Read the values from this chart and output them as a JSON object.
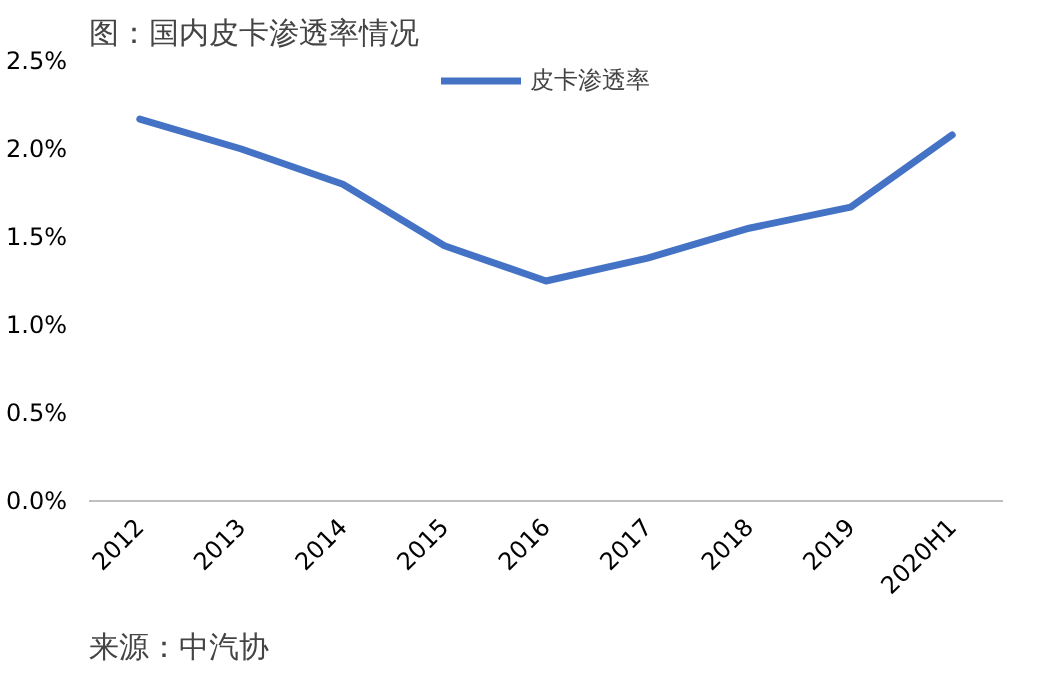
{
  "chart_data": {
    "type": "line",
    "title": "图：国内皮卡渗透率情况",
    "categories": [
      "2012",
      "2013",
      "2014",
      "2015",
      "2016",
      "2017",
      "2018",
      "2019",
      "2020H1"
    ],
    "series": [
      {
        "name": "皮卡渗透率",
        "color": "#4472c4",
        "values": [
          2.17,
          2.0,
          1.8,
          1.45,
          1.25,
          1.38,
          1.55,
          1.67,
          2.08
        ]
      }
    ],
    "ylim": [
      0,
      2.5
    ],
    "yticks": [
      {
        "value": 0,
        "label": "0.0%"
      },
      {
        "value": 0.5,
        "label": "0.5%"
      },
      {
        "value": 1.0,
        "label": "1.0%"
      },
      {
        "value": 1.5,
        "label": "1.5%"
      },
      {
        "value": 2.0,
        "label": "2.0%"
      },
      {
        "value": 2.5,
        "label": "2.5%"
      }
    ],
    "legend": "top",
    "grid": false,
    "marker": "none",
    "line_style": "solid",
    "annotations": [
      "来源：中汽协"
    ]
  }
}
